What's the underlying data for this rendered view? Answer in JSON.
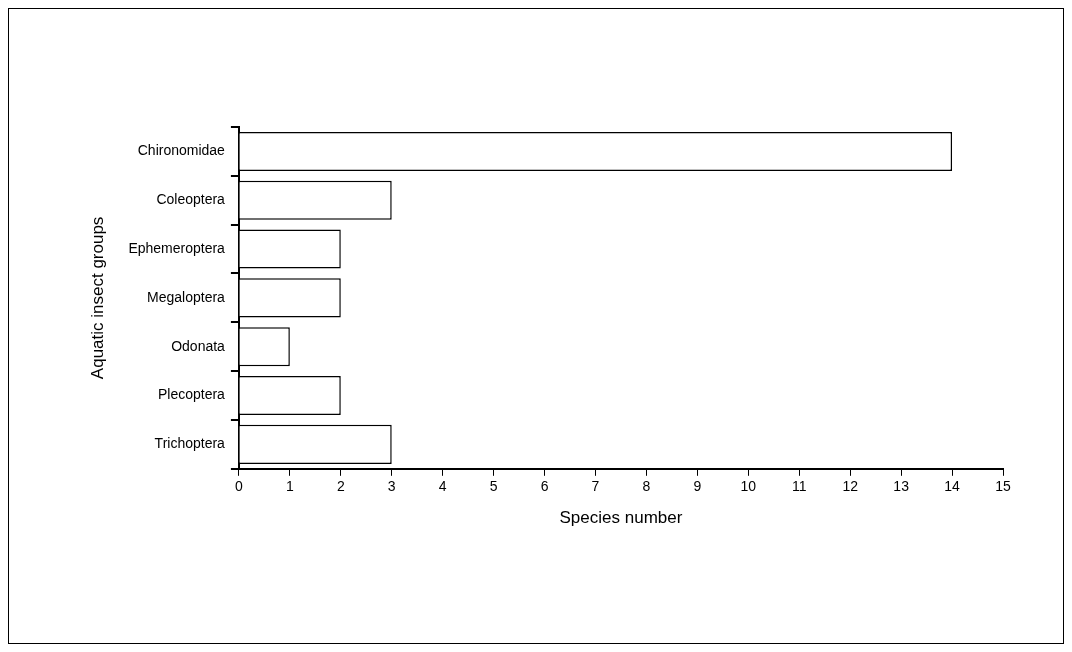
{
  "chart_data": {
    "type": "bar",
    "orientation": "horizontal",
    "xlabel": "Species number",
    "ylabel": "Aquatic insect groups",
    "categories": [
      "Chironomidae",
      "Coleoptera",
      "Ephemeroptera",
      "Megaloptera",
      "Odonata",
      "Plecoptera",
      "Trichoptera"
    ],
    "values": [
      14,
      3,
      2,
      2,
      1,
      2,
      3
    ],
    "color": "#ffffff",
    "xlim": [
      0,
      15
    ],
    "xticks": [
      0,
      1,
      2,
      3,
      4,
      5,
      6,
      7,
      8,
      9,
      10,
      11,
      12,
      13,
      14,
      15
    ],
    "grid": false,
    "legend": false
  }
}
